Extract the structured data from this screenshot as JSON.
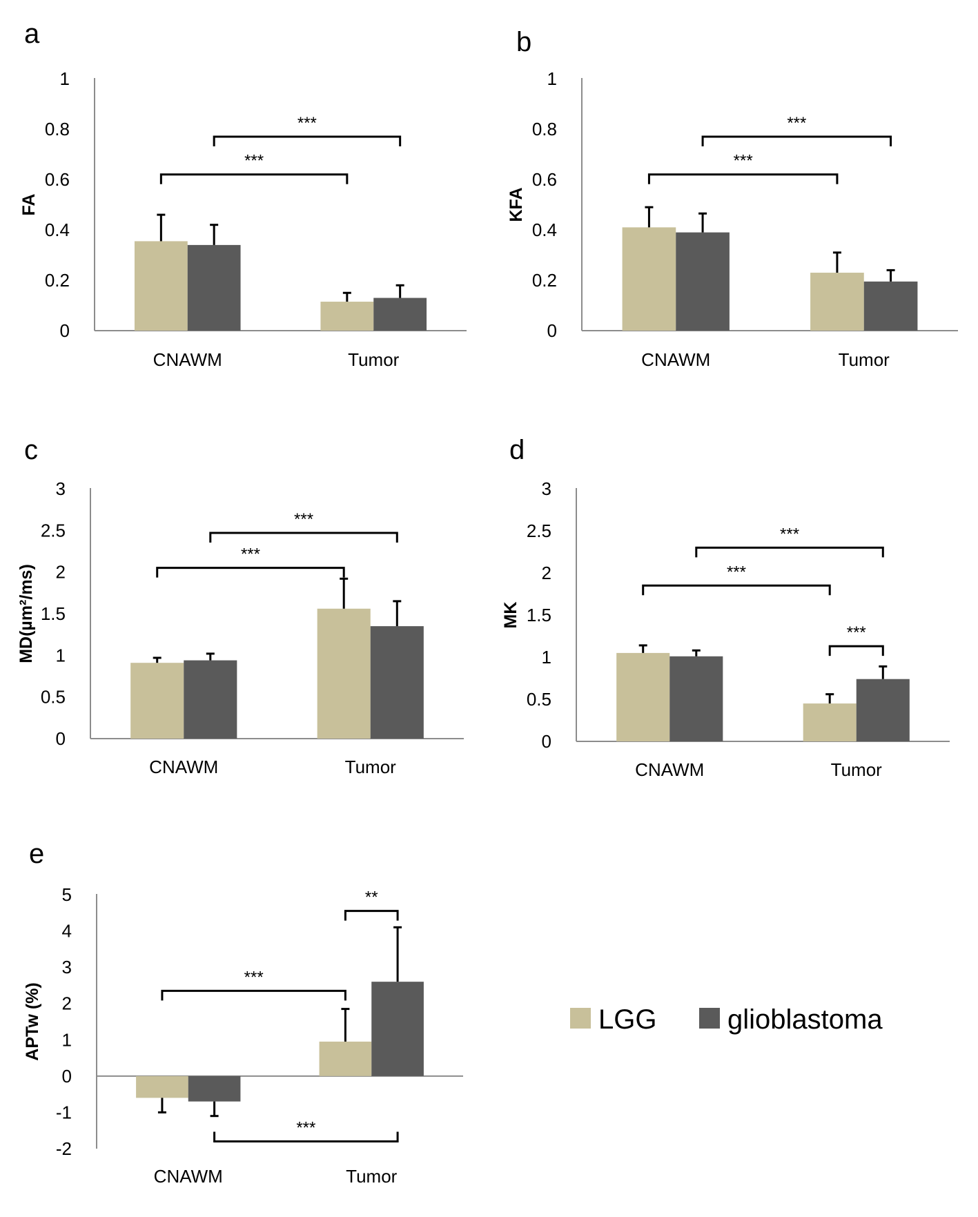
{
  "colors": {
    "LGG": "#c8c09a",
    "glioblastoma": "#5a5a5a",
    "axis": "#8c8c8c",
    "bracket": "#000000"
  },
  "legend": {
    "items": [
      {
        "label": "LGG",
        "color": "#c8c09a"
      },
      {
        "label": "glioblastoma",
        "color": "#5a5a5a"
      }
    ]
  },
  "chart_data": [
    {
      "id": "a",
      "panel_label": "a",
      "type": "bar",
      "categories": [
        "CNAWM",
        "Tumor"
      ],
      "series": [
        {
          "name": "LGG",
          "values": [
            0.355,
            0.115
          ],
          "errors": [
            0.105,
            0.035
          ]
        },
        {
          "name": "glioblastoma",
          "values": [
            0.34,
            0.13
          ],
          "errors": [
            0.08,
            0.05
          ]
        }
      ],
      "ylabel": "FA",
      "ylim": [
        0,
        1
      ],
      "yticks": [
        {
          "value": 0,
          "label": "0"
        },
        {
          "value": 0.2,
          "label": "0.2"
        },
        {
          "value": 0.4,
          "label": "0.4"
        },
        {
          "value": 0.6,
          "label": "0.6"
        },
        {
          "value": 0.8,
          "label": "0.8"
        },
        {
          "value": 1,
          "label": "1"
        }
      ],
      "annotations": [
        {
          "from": [
            0,
            0
          ],
          "to": [
            1,
            0
          ],
          "y": 0.62,
          "text": "***",
          "side": "top"
        },
        {
          "from": [
            0,
            1
          ],
          "to": [
            1,
            1
          ],
          "y": 0.77,
          "text": "***",
          "side": "top"
        }
      ]
    },
    {
      "id": "b",
      "panel_label": "b",
      "type": "bar",
      "categories": [
        "CNAWM",
        "Tumor"
      ],
      "series": [
        {
          "name": "LGG",
          "values": [
            0.41,
            0.23
          ],
          "errors": [
            0.08,
            0.08
          ]
        },
        {
          "name": "glioblastoma",
          "values": [
            0.39,
            0.195
          ],
          "errors": [
            0.075,
            0.045
          ]
        }
      ],
      "ylabel": "KFA",
      "ylim": [
        0,
        1
      ],
      "yticks": [
        {
          "value": 0,
          "label": "0"
        },
        {
          "value": 0.2,
          "label": "0.2"
        },
        {
          "value": 0.4,
          "label": "0.4"
        },
        {
          "value": 0.6,
          "label": "0.6"
        },
        {
          "value": 0.8,
          "label": "0.8"
        },
        {
          "value": 1,
          "label": "1"
        }
      ],
      "annotations": [
        {
          "from": [
            0,
            0
          ],
          "to": [
            1,
            0
          ],
          "y": 0.62,
          "text": "***",
          "side": "top"
        },
        {
          "from": [
            0,
            1
          ],
          "to": [
            1,
            1
          ],
          "y": 0.77,
          "text": "***",
          "side": "top"
        }
      ]
    },
    {
      "id": "c",
      "panel_label": "c",
      "type": "bar",
      "categories": [
        "CNAWM",
        "Tumor"
      ],
      "series": [
        {
          "name": "LGG",
          "values": [
            0.91,
            1.56
          ],
          "errors": [
            0.06,
            0.36
          ]
        },
        {
          "name": "glioblastoma",
          "values": [
            0.94,
            1.35
          ],
          "errors": [
            0.08,
            0.3
          ]
        }
      ],
      "ylabel": "MD(µm²/ms)",
      "ylim": [
        0,
        3
      ],
      "yticks": [
        {
          "value": 0,
          "label": "0"
        },
        {
          "value": 0.5,
          "label": "0.5"
        },
        {
          "value": 1,
          "label": "1"
        },
        {
          "value": 1.5,
          "label": "1.5"
        },
        {
          "value": 2,
          "label": "2"
        },
        {
          "value": 2.5,
          "label": "2.5"
        },
        {
          "value": 3,
          "label": "3"
        }
      ],
      "annotations": [
        {
          "from": [
            0,
            0
          ],
          "to": [
            1,
            0
          ],
          "y": 2.05,
          "text": "***",
          "side": "top"
        },
        {
          "from": [
            0,
            1
          ],
          "to": [
            1,
            1
          ],
          "y": 2.47,
          "text": "***",
          "side": "top"
        }
      ]
    },
    {
      "id": "d",
      "panel_label": "d",
      "type": "bar",
      "categories": [
        "CNAWM",
        "Tumor"
      ],
      "series": [
        {
          "name": "LGG",
          "values": [
            1.05,
            0.45
          ],
          "errors": [
            0.09,
            0.11
          ]
        },
        {
          "name": "glioblastoma",
          "values": [
            1.01,
            0.74
          ],
          "errors": [
            0.07,
            0.15
          ]
        }
      ],
      "ylabel": "MK",
      "ylim": [
        0,
        3
      ],
      "yticks": [
        {
          "value": 0,
          "label": "0"
        },
        {
          "value": 0.5,
          "label": "0.5"
        },
        {
          "value": 1,
          "label": "1"
        },
        {
          "value": 1.5,
          "label": "1.5"
        },
        {
          "value": 2,
          "label": "2"
        },
        {
          "value": 2.5,
          "label": "2.5"
        },
        {
          "value": 3,
          "label": "3"
        }
      ],
      "annotations": [
        {
          "from": [
            0,
            0
          ],
          "to": [
            1,
            0
          ],
          "y": 1.85,
          "text": "***",
          "side": "top"
        },
        {
          "from": [
            0,
            1
          ],
          "to": [
            1,
            1
          ],
          "y": 2.3,
          "text": "***",
          "side": "top"
        },
        {
          "from": [
            1,
            0
          ],
          "to": [
            1,
            1
          ],
          "y": 1.13,
          "text": "***",
          "side": "top"
        }
      ]
    },
    {
      "id": "e",
      "panel_label": "e",
      "type": "bar",
      "categories": [
        "CNAWM",
        "Tumor"
      ],
      "series": [
        {
          "name": "LGG",
          "values": [
            -0.6,
            0.95
          ],
          "errors": [
            0.4,
            0.9
          ]
        },
        {
          "name": "glioblastoma",
          "values": [
            -0.7,
            2.6
          ],
          "errors": [
            0.4,
            1.5
          ]
        }
      ],
      "ylabel": "APTw (%)",
      "ylim": [
        -2,
        5
      ],
      "yticks": [
        {
          "value": -2,
          "label": "-2"
        },
        {
          "value": -1,
          "label": "-1"
        },
        {
          "value": 0,
          "label": "0"
        },
        {
          "value": 1,
          "label": "1"
        },
        {
          "value": 2,
          "label": "2"
        },
        {
          "value": 3,
          "label": "3"
        },
        {
          "value": 4,
          "label": "4"
        },
        {
          "value": 5,
          "label": "5"
        }
      ],
      "annotations": [
        {
          "from": [
            0,
            0
          ],
          "to": [
            1,
            0
          ],
          "y": 2.35,
          "text": "***",
          "side": "top"
        },
        {
          "from": [
            1,
            0
          ],
          "to": [
            1,
            1
          ],
          "y": 4.55,
          "text": "**",
          "side": "top"
        },
        {
          "from": [
            0,
            1
          ],
          "to": [
            1,
            1
          ],
          "y": -1.8,
          "text": "***",
          "side": "bottom"
        }
      ]
    }
  ]
}
